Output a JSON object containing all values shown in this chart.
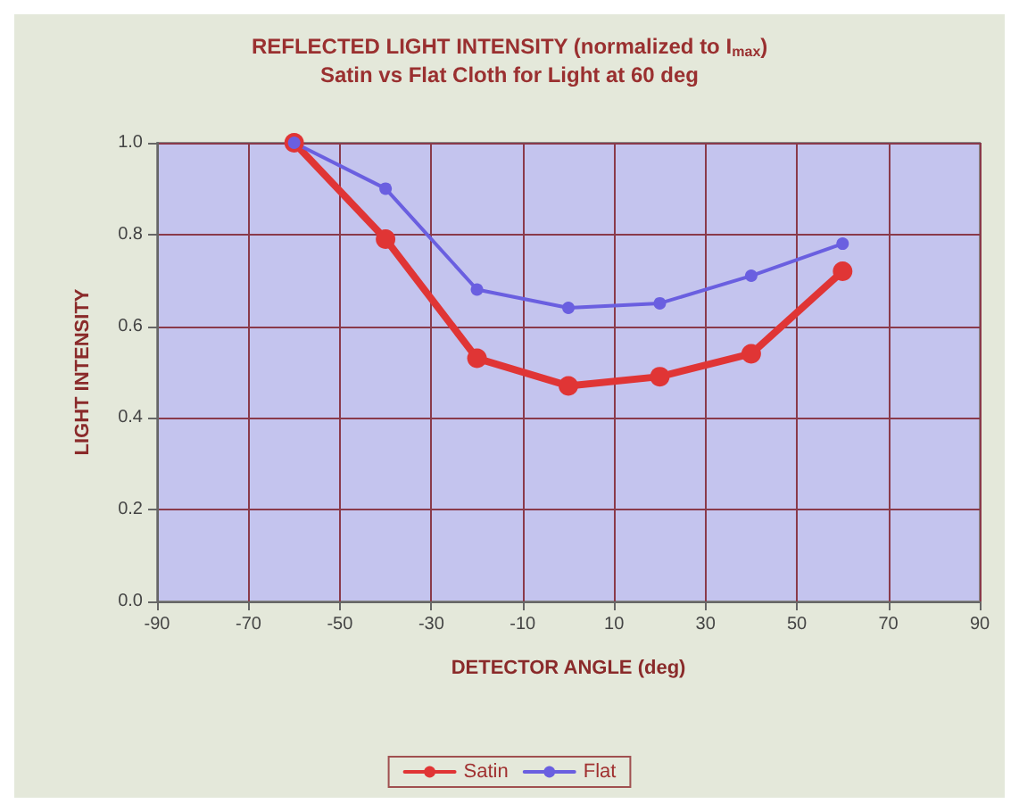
{
  "chart_data": {
    "type": "line",
    "title": "REFLECTED LIGHT INTENSITY (normalized to I$_{max}$)",
    "subtitle": "Satin vs Flat Cloth for Light at 60 deg",
    "xlabel": "DETECTOR ANGLE (deg)",
    "ylabel": "LIGHT INTENSITY",
    "x": [
      -60,
      -40,
      -20,
      0,
      20,
      40,
      60
    ],
    "series": [
      {
        "name": "Satin",
        "color": "#e03535",
        "values": [
          1.0,
          0.79,
          0.53,
          0.47,
          0.49,
          0.54,
          0.72
        ]
      },
      {
        "name": "Flat",
        "color": "#6a5fe0",
        "values": [
          1.0,
          0.9,
          0.68,
          0.64,
          0.65,
          0.71,
          0.78
        ]
      }
    ],
    "xlim": [
      -90,
      90
    ],
    "xticks": [
      -90,
      -70,
      -50,
      -30,
      -10,
      10,
      30,
      50,
      70,
      90
    ],
    "ylim": [
      0,
      1
    ],
    "yticks": [
      {
        "value": 0,
        "label": "0.0"
      },
      {
        "value": 0.2,
        "label": "0.2"
      },
      {
        "value": 0.4,
        "label": "0.4"
      },
      {
        "value": 0.6,
        "label": "0.6"
      },
      {
        "value": 0.8,
        "label": "0.8"
      },
      {
        "value": 1,
        "label": "1.0"
      }
    ],
    "grid": true,
    "legend": "bottom",
    "marker": "circle",
    "line_style": "solid"
  }
}
